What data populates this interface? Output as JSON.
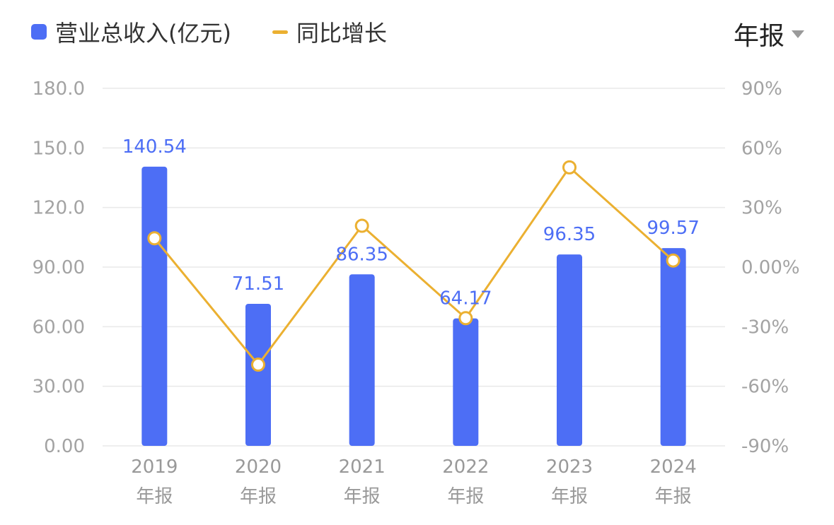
{
  "legend": {
    "bar_label": "营业总收入(亿元)",
    "line_label": "同比增长"
  },
  "period_selector": {
    "label": "年报"
  },
  "colors": {
    "bar": "#4D6EF5",
    "line": "#EBB031",
    "value_label": "#4D6EF5",
    "grid": "#E9E9E9"
  },
  "chart_data": {
    "type": "bar",
    "title": "",
    "categories": [
      "2019",
      "2020",
      "2021",
      "2022",
      "2023",
      "2024"
    ],
    "category_suffix": "年报",
    "series": [
      {
        "name": "营业总收入(亿元)",
        "type": "bar",
        "axis": "left",
        "values": [
          140.54,
          71.51,
          86.35,
          64.17,
          96.35,
          99.57
        ],
        "labels": [
          "140.54",
          "71.51",
          "86.35",
          "64.17",
          "96.35",
          "99.57"
        ]
      },
      {
        "name": "同比增长",
        "type": "line",
        "axis": "right",
        "values": [
          14.5,
          -49.1,
          20.8,
          -25.7,
          50.2,
          3.3
        ]
      }
    ],
    "y_left": {
      "min": 0,
      "max": 180,
      "ticks": [
        "0.00",
        "30.00",
        "60.00",
        "90.00",
        "120.0",
        "150.0",
        "180.0"
      ]
    },
    "y_right": {
      "min": -90,
      "max": 90,
      "ticks": [
        "-90%",
        "-60%",
        "-30%",
        "0.00%",
        "30%",
        "60%",
        "90%"
      ]
    },
    "grid": true
  }
}
